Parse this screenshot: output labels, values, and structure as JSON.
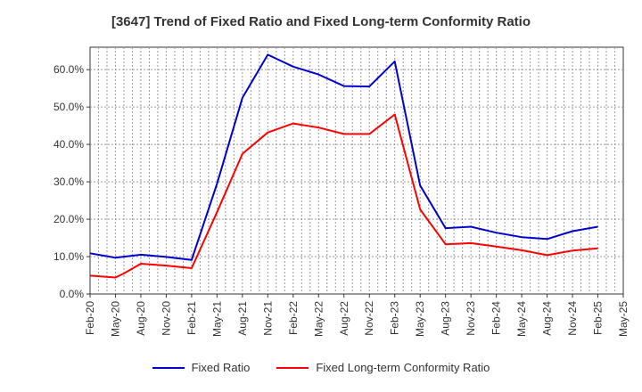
{
  "chart_data": {
    "type": "line",
    "title": "[3647]  Trend of Fixed Ratio and Fixed Long-term Conformity Ratio",
    "xlabel": "",
    "ylabel": "",
    "x_tick_labels": [
      "Feb-20",
      "May-20",
      "Aug-20",
      "Nov-20",
      "Feb-21",
      "May-21",
      "Aug-21",
      "Nov-21",
      "Feb-22",
      "May-22",
      "Aug-22",
      "Nov-22",
      "Feb-23",
      "May-23",
      "Aug-23",
      "Nov-23",
      "Feb-24",
      "May-24",
      "Aug-24",
      "Nov-24",
      "Feb-25",
      "May-25"
    ],
    "y_tick_labels": [
      "0.0%",
      "10.0%",
      "20.0%",
      "30.0%",
      "40.0%",
      "50.0%",
      "60.0%"
    ],
    "ylim": [
      0,
      66
    ],
    "grid": true,
    "legend_position": "bottom",
    "series": [
      {
        "name": "Fixed Ratio",
        "color": "#0000cc",
        "x": [
          "Feb-20",
          "May-20",
          "Aug-20",
          "Nov-20",
          "Feb-21",
          "May-21",
          "Aug-21",
          "Sep-21",
          "Nov-21",
          "Feb-22",
          "May-22",
          "Aug-22",
          "Nov-22",
          "Feb-23",
          "May-23",
          "Aug-23",
          "Nov-23",
          "Feb-24",
          "May-24",
          "Aug-24",
          "Nov-24",
          "Feb-25"
        ],
        "values": [
          10.9,
          9.7,
          10.5,
          9.9,
          9.1,
          29.5,
          52.5,
          56.3,
          64.0,
          60.8,
          58.7,
          55.6,
          55.5,
          62.2,
          29.0,
          17.6,
          18.0,
          16.4,
          15.2,
          14.7,
          16.8,
          18.0
        ]
      },
      {
        "name": "Fixed Long-term Conformity Ratio",
        "color": "#ff0000",
        "x": [
          "Feb-20",
          "May-20",
          "Jun-20",
          "Aug-20",
          "Nov-20",
          "Feb-21",
          "May-21",
          "Aug-21",
          "Nov-21",
          "Feb-22",
          "May-22",
          "Aug-22",
          "Nov-22",
          "Feb-23",
          "May-23",
          "Aug-23",
          "Nov-23",
          "Feb-24",
          "May-24",
          "Aug-24",
          "Nov-24",
          "Feb-25"
        ],
        "values": [
          4.9,
          4.4,
          5.5,
          8.1,
          7.6,
          6.9,
          21.9,
          37.5,
          43.2,
          45.6,
          44.5,
          42.8,
          42.8,
          48.0,
          22.6,
          13.3,
          13.6,
          12.7,
          11.7,
          10.4,
          11.6,
          12.2
        ]
      }
    ]
  }
}
